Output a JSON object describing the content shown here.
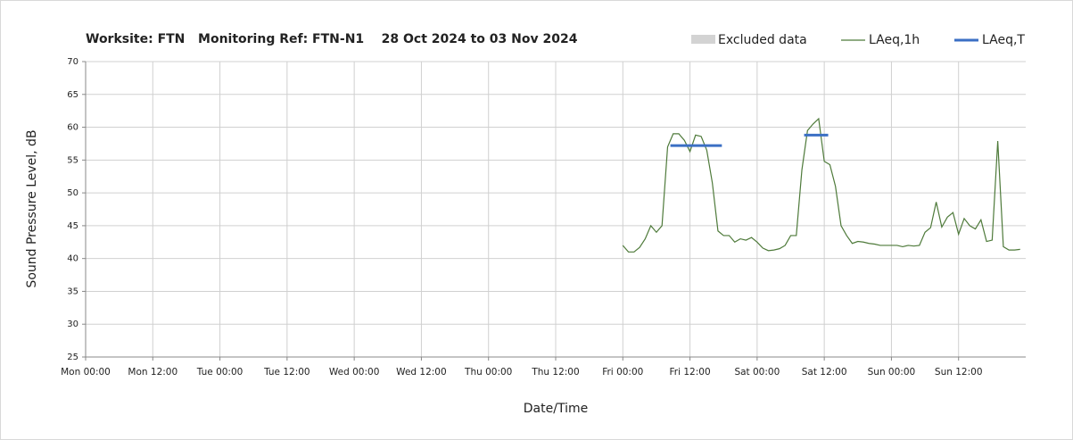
{
  "chart_data": {
    "type": "line",
    "title": "Worksite: FTN   Monitoring Ref: FTN-N1    28 Oct 2024 to 03 Nov 2024",
    "x_label": "Date/Time",
    "y_label": "Sound Pressure Level, dB",
    "xlim": [
      0,
      168
    ],
    "xticks": [
      {
        "value": 0,
        "label": "Mon 00:00"
      },
      {
        "value": 12,
        "label": "Mon 12:00"
      },
      {
        "value": 24,
        "label": "Tue 00:00"
      },
      {
        "value": 36,
        "label": "Tue 12:00"
      },
      {
        "value": 48,
        "label": "Wed 00:00"
      },
      {
        "value": 60,
        "label": "Wed 12:00"
      },
      {
        "value": 72,
        "label": "Thu 00:00"
      },
      {
        "value": 84,
        "label": "Thu 12:00"
      },
      {
        "value": 96,
        "label": "Fri 00:00"
      },
      {
        "value": 108,
        "label": "Fri 12:00"
      },
      {
        "value": 120,
        "label": "Sat 00:00"
      },
      {
        "value": 132,
        "label": "Sat 12:00"
      },
      {
        "value": 144,
        "label": "Sun 00:00"
      },
      {
        "value": 156,
        "label": "Sun 12:00"
      }
    ],
    "ylim": [
      25,
      70
    ],
    "yticks": [
      25,
      30,
      35,
      40,
      45,
      50,
      55,
      60,
      65,
      70
    ],
    "grid": true,
    "excluded_data": {
      "name": "Excluded data",
      "color": "#d3d3d3"
    },
    "series": [
      {
        "name": "LAeq,1h",
        "color": "#4e7a3a",
        "x": [
          96,
          97,
          98,
          99,
          100,
          101,
          102,
          103,
          104,
          105,
          106,
          107,
          108,
          109,
          110,
          111,
          112,
          113,
          114,
          115,
          116,
          117,
          118,
          119,
          120,
          121,
          122,
          123,
          124,
          125,
          126,
          127,
          128,
          129,
          130,
          131,
          132,
          133,
          134,
          135,
          136,
          137,
          138,
          139,
          140,
          141,
          142,
          143,
          144,
          145,
          146,
          147,
          148,
          149,
          150,
          151,
          152,
          153,
          154,
          155,
          156,
          157,
          158,
          159,
          160,
          161,
          162,
          163,
          164,
          165,
          166,
          167
        ],
        "values": [
          42,
          41,
          41,
          41.7,
          43,
          45,
          44,
          45,
          57,
          59,
          59,
          58,
          56.3,
          58.8,
          58.6,
          56.5,
          51.5,
          44.2,
          43.5,
          43.5,
          42.5,
          43,
          42.8,
          43.2,
          42.5,
          41.6,
          41.2,
          41.3,
          41.5,
          42,
          43.5,
          43.5,
          53.5,
          59.5,
          60.5,
          61.3,
          54.8,
          54.3,
          51,
          45,
          43.5,
          42.3,
          42.6,
          42.5,
          42.3,
          42.2,
          42,
          42,
          42,
          42,
          41.8,
          42,
          41.9,
          42,
          44,
          44.7,
          48.6,
          44.8,
          46.3,
          47,
          43.7,
          46.1,
          45,
          44.5,
          45.9,
          42.6,
          42.8,
          57.9,
          41.8,
          41.3,
          41.3,
          41.4
        ]
      },
      {
        "name": "LAeq,T",
        "color": "#3b6fc4",
        "segments": [
          {
            "x": [
              104.5,
              113.7
            ],
            "value": 57.2
          },
          {
            "x": [
              128.4,
              132.7
            ],
            "value": 58.8
          }
        ]
      }
    ]
  }
}
